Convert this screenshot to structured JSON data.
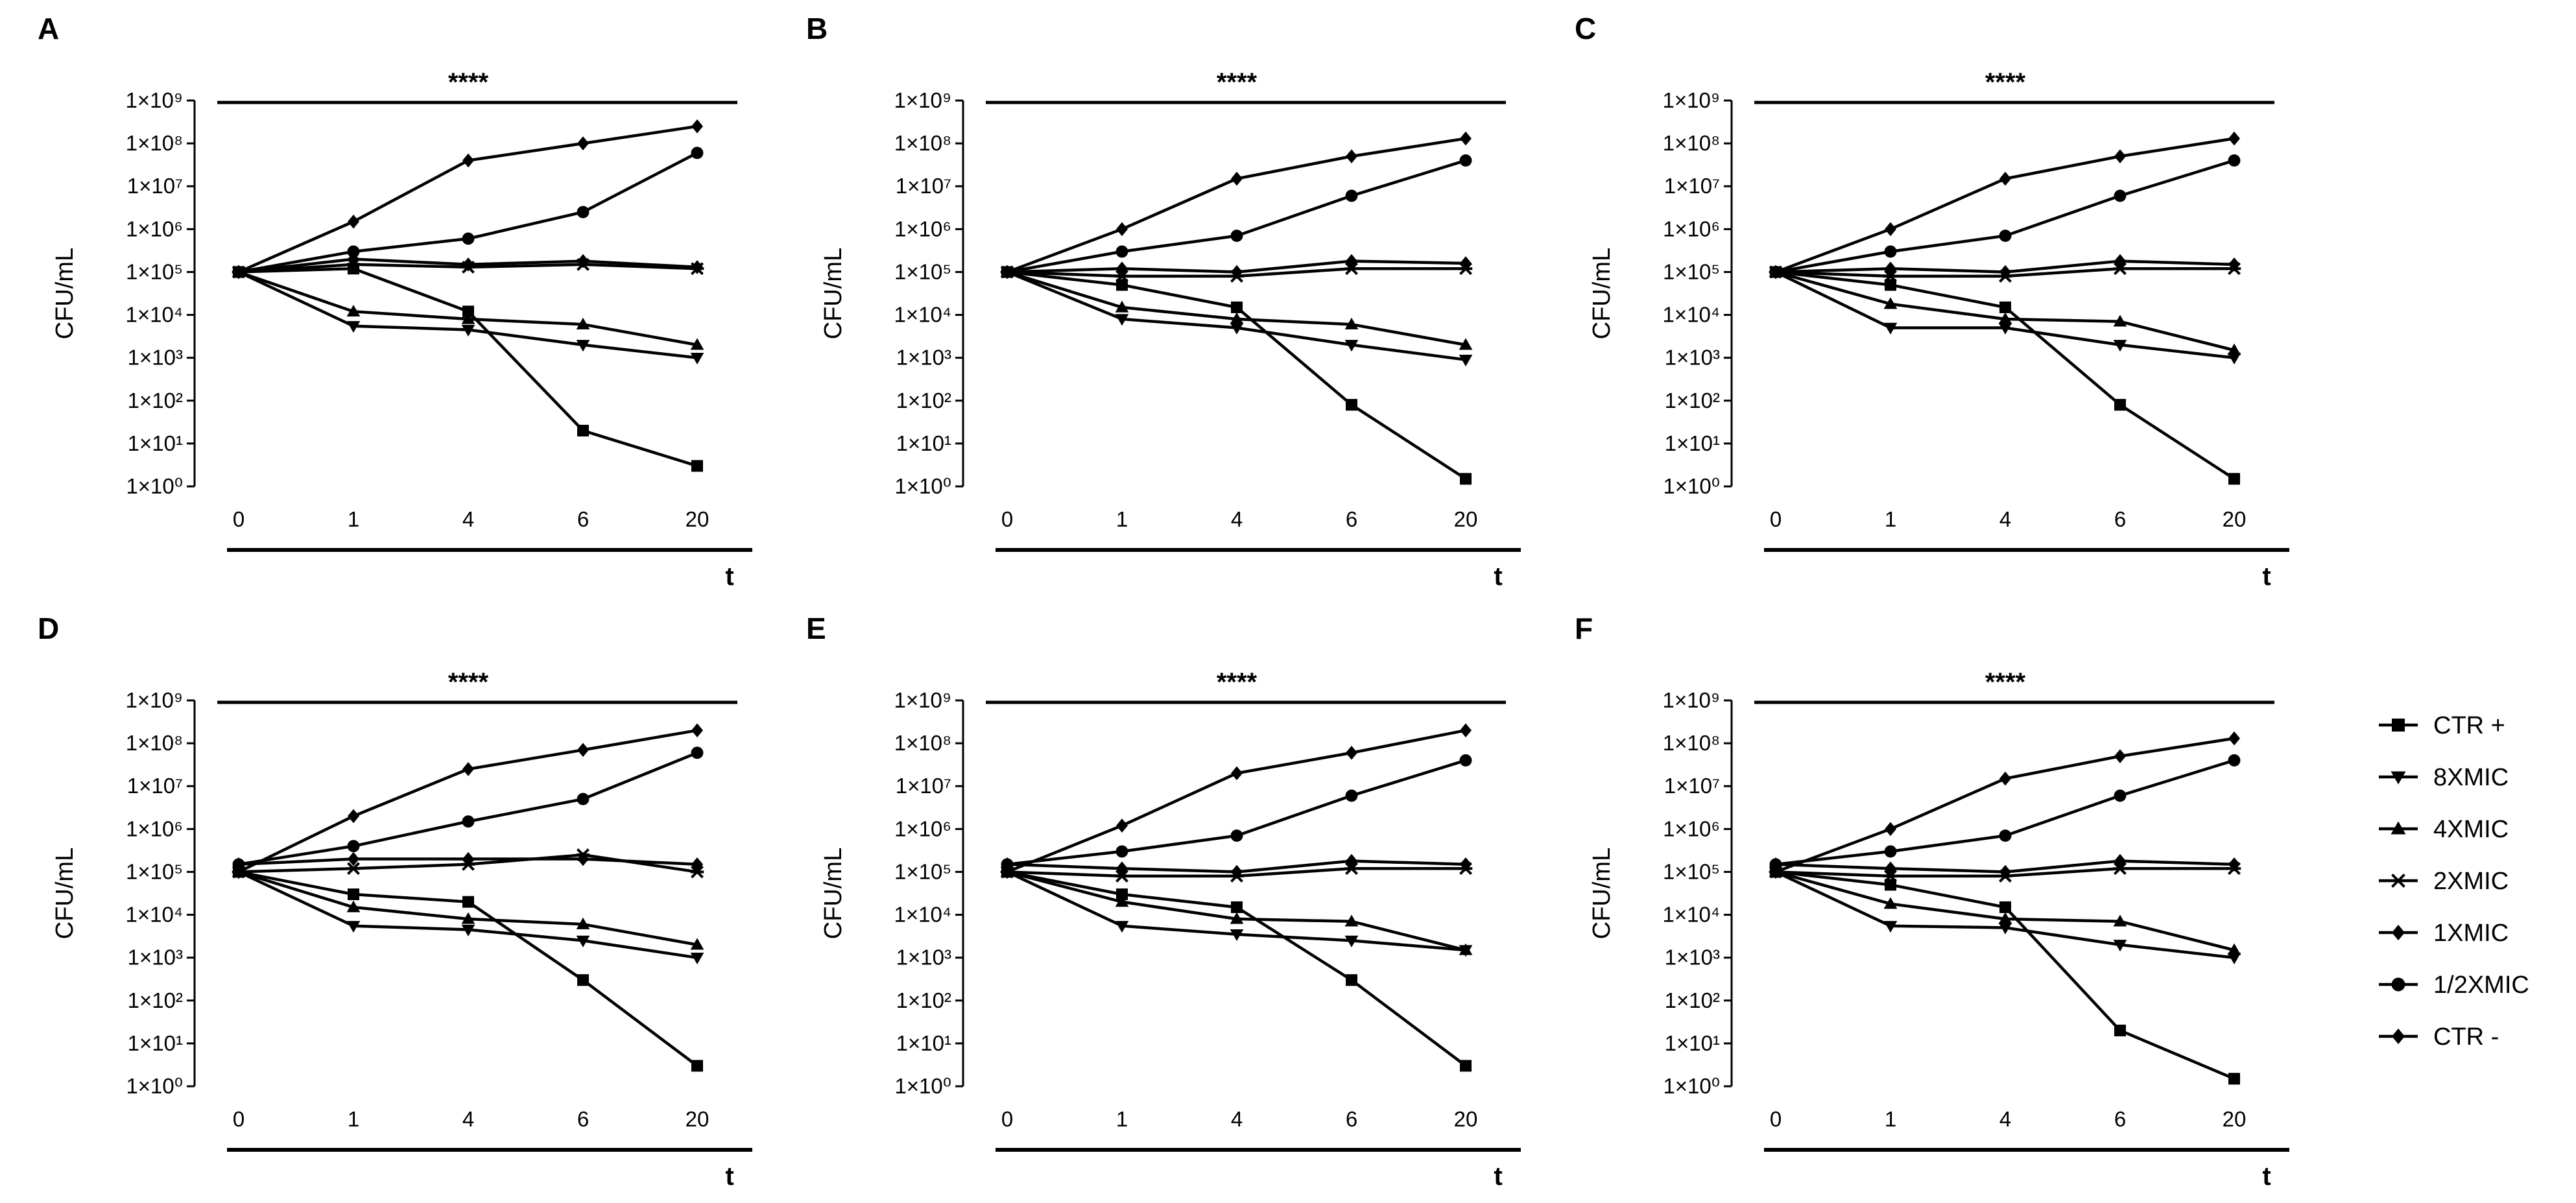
{
  "figure": {
    "legend": [
      {
        "label": "CTR +",
        "marker": "square"
      },
      {
        "label": "8XMIC",
        "marker": "triangle-down"
      },
      {
        "label": "4XMIC",
        "marker": "triangle-up"
      },
      {
        "label": "2XMIC",
        "marker": "star"
      },
      {
        "label": "1XMIC",
        "marker": "diamond"
      },
      {
        "label": "1/2XMIC",
        "marker": "circle"
      },
      {
        "label": "CTR -",
        "marker": "diamond"
      }
    ]
  },
  "chart_data": [
    {
      "panel": "A",
      "type": "line",
      "ylabel": "CFU/mL",
      "xlabel": "t",
      "y_scale": "log10",
      "ylim": [
        1,
        1000000000
      ],
      "significance": "****",
      "categories": [
        "0",
        "1",
        "4",
        "6",
        "20"
      ],
      "y_ticks": [
        "1×10⁰",
        "1×10¹",
        "1×10²",
        "1×10³",
        "1×10⁴",
        "1×10⁵",
        "1×10⁶",
        "1×10⁷",
        "1×10⁸",
        "1×10⁹"
      ],
      "series": [
        {
          "name": "CTR +",
          "values": [
            100000,
            120000,
            12000,
            20,
            3
          ]
        },
        {
          "name": "8XMIC",
          "values": [
            100000,
            5500,
            4500,
            2000,
            1000
          ]
        },
        {
          "name": "4XMIC",
          "values": [
            100000,
            12000,
            8000,
            6000,
            2000
          ]
        },
        {
          "name": "2XMIC",
          "values": [
            100000,
            150000,
            130000,
            150000,
            120000
          ]
        },
        {
          "name": "1XMIC",
          "values": [
            100000,
            200000,
            150000,
            180000,
            130000
          ]
        },
        {
          "name": "1/2XMIC",
          "values": [
            100000,
            300000,
            600000,
            2500000,
            60000000
          ]
        },
        {
          "name": "CTR -",
          "values": [
            100000,
            1500000,
            40000000,
            100000000,
            250000000
          ]
        }
      ]
    },
    {
      "panel": "B",
      "type": "line",
      "ylabel": "CFU/mL",
      "xlabel": "t",
      "y_scale": "log10",
      "ylim": [
        1,
        1000000000
      ],
      "significance": "****",
      "categories": [
        "0",
        "1",
        "4",
        "6",
        "20"
      ],
      "y_ticks": [
        "1×10⁰",
        "1×10¹",
        "1×10²",
        "1×10³",
        "1×10⁴",
        "1×10⁵",
        "1×10⁶",
        "1×10⁷",
        "1×10⁸",
        "1×10⁹"
      ],
      "series": [
        {
          "name": "CTR +",
          "values": [
            100000,
            50000,
            15000,
            80,
            1.5
          ]
        },
        {
          "name": "8XMIC",
          "values": [
            100000,
            8000,
            5000,
            2000,
            900
          ]
        },
        {
          "name": "4XMIC",
          "values": [
            100000,
            15000,
            8000,
            6000,
            2000
          ]
        },
        {
          "name": "2XMIC",
          "values": [
            100000,
            80000,
            80000,
            120000,
            120000
          ]
        },
        {
          "name": "1XMIC",
          "values": [
            100000,
            120000,
            100000,
            180000,
            160000
          ]
        },
        {
          "name": "1/2XMIC",
          "values": [
            100000,
            300000,
            700000,
            6000000,
            40000000
          ]
        },
        {
          "name": "CTR -",
          "values": [
            100000,
            1000000,
            15000000,
            50000000,
            130000000
          ]
        }
      ]
    },
    {
      "panel": "C",
      "type": "line",
      "ylabel": "CFU/mL",
      "xlabel": "t",
      "y_scale": "log10",
      "ylim": [
        1,
        1000000000
      ],
      "significance": "****",
      "categories": [
        "0",
        "1",
        "4",
        "6",
        "20"
      ],
      "y_ticks": [
        "1×10⁰",
        "1×10¹",
        "1×10²",
        "1×10³",
        "1×10⁴",
        "1×10⁵",
        "1×10⁶",
        "1×10⁷",
        "1×10⁸",
        "1×10⁹"
      ],
      "series": [
        {
          "name": "CTR +",
          "values": [
            100000,
            50000,
            15000,
            80,
            1.5
          ]
        },
        {
          "name": "8XMIC",
          "values": [
            100000,
            5000,
            5000,
            2000,
            1000
          ]
        },
        {
          "name": "4XMIC",
          "values": [
            100000,
            18000,
            8000,
            7000,
            1500
          ]
        },
        {
          "name": "2XMIC",
          "values": [
            100000,
            80000,
            80000,
            120000,
            120000
          ]
        },
        {
          "name": "1XMIC",
          "values": [
            100000,
            120000,
            100000,
            180000,
            150000
          ]
        },
        {
          "name": "1/2XMIC",
          "values": [
            100000,
            300000,
            700000,
            6000000,
            40000000
          ]
        },
        {
          "name": "CTR -",
          "values": [
            100000,
            1000000,
            15000000,
            50000000,
            130000000
          ]
        }
      ]
    },
    {
      "panel": "D",
      "type": "line",
      "ylabel": "CFU/mL",
      "xlabel": "t",
      "y_scale": "log10",
      "ylim": [
        1,
        1000000000
      ],
      "significance": "****",
      "categories": [
        "0",
        "1",
        "4",
        "6",
        "20"
      ],
      "y_ticks": [
        "1×10⁰",
        "1×10¹",
        "1×10²",
        "1×10³",
        "1×10⁴",
        "1×10⁵",
        "1×10⁶",
        "1×10⁷",
        "1×10⁸",
        "1×10⁹"
      ],
      "series": [
        {
          "name": "CTR +",
          "values": [
            100000,
            30000,
            20000,
            300,
            3
          ]
        },
        {
          "name": "8XMIC",
          "values": [
            100000,
            5500,
            4500,
            2500,
            1000
          ]
        },
        {
          "name": "4XMIC",
          "values": [
            100000,
            15000,
            8000,
            6000,
            2000
          ]
        },
        {
          "name": "2XMIC",
          "values": [
            100000,
            120000,
            150000,
            250000,
            100000
          ]
        },
        {
          "name": "1XMIC",
          "values": [
            150000,
            200000,
            200000,
            200000,
            150000
          ]
        },
        {
          "name": "1/2XMIC",
          "values": [
            150000,
            400000,
            1500000,
            5000000,
            60000000
          ]
        },
        {
          "name": "CTR -",
          "values": [
            100000,
            2000000,
            25000000,
            70000000,
            200000000
          ]
        }
      ]
    },
    {
      "panel": "E",
      "type": "line",
      "ylabel": "CFU/mL",
      "xlabel": "t",
      "y_scale": "log10",
      "ylim": [
        1,
        1000000000
      ],
      "significance": "****",
      "categories": [
        "0",
        "1",
        "4",
        "6",
        "20"
      ],
      "y_ticks": [
        "1×10⁰",
        "1×10¹",
        "1×10²",
        "1×10³",
        "1×10⁴",
        "1×10⁵",
        "1×10⁶",
        "1×10⁷",
        "1×10⁸",
        "1×10⁹"
      ],
      "series": [
        {
          "name": "CTR +",
          "values": [
            100000,
            30000,
            15000,
            300,
            3
          ]
        },
        {
          "name": "8XMIC",
          "values": [
            100000,
            5500,
            3500,
            2500,
            1500
          ]
        },
        {
          "name": "4XMIC",
          "values": [
            100000,
            20000,
            8000,
            7000,
            1500
          ]
        },
        {
          "name": "2XMIC",
          "values": [
            100000,
            80000,
            80000,
            120000,
            120000
          ]
        },
        {
          "name": "1XMIC",
          "values": [
            150000,
            120000,
            100000,
            180000,
            150000
          ]
        },
        {
          "name": "1/2XMIC",
          "values": [
            150000,
            300000,
            700000,
            6000000,
            40000000
          ]
        },
        {
          "name": "CTR -",
          "values": [
            100000,
            1200000,
            20000000,
            60000000,
            200000000
          ]
        }
      ]
    },
    {
      "panel": "F",
      "type": "line",
      "ylabel": "CFU/mL",
      "xlabel": "t",
      "y_scale": "log10",
      "ylim": [
        1,
        1000000000
      ],
      "significance": "****",
      "categories": [
        "0",
        "1",
        "4",
        "6",
        "20"
      ],
      "y_ticks": [
        "1×10⁰",
        "1×10¹",
        "1×10²",
        "1×10³",
        "1×10⁴",
        "1×10⁵",
        "1×10⁶",
        "1×10⁷",
        "1×10⁸",
        "1×10⁹"
      ],
      "series": [
        {
          "name": "CTR +",
          "values": [
            100000,
            50000,
            15000,
            20,
            1.5
          ]
        },
        {
          "name": "8XMIC",
          "values": [
            100000,
            5500,
            5000,
            2000,
            1000
          ]
        },
        {
          "name": "4XMIC",
          "values": [
            100000,
            18000,
            8000,
            7000,
            1500
          ]
        },
        {
          "name": "2XMIC",
          "values": [
            100000,
            80000,
            80000,
            120000,
            120000
          ]
        },
        {
          "name": "1XMIC",
          "values": [
            150000,
            120000,
            100000,
            180000,
            150000
          ]
        },
        {
          "name": "1/2XMIC",
          "values": [
            150000,
            300000,
            700000,
            6000000,
            40000000
          ]
        },
        {
          "name": "CTR -",
          "values": [
            100000,
            1000000,
            15000000,
            50000000,
            130000000
          ]
        }
      ]
    }
  ]
}
